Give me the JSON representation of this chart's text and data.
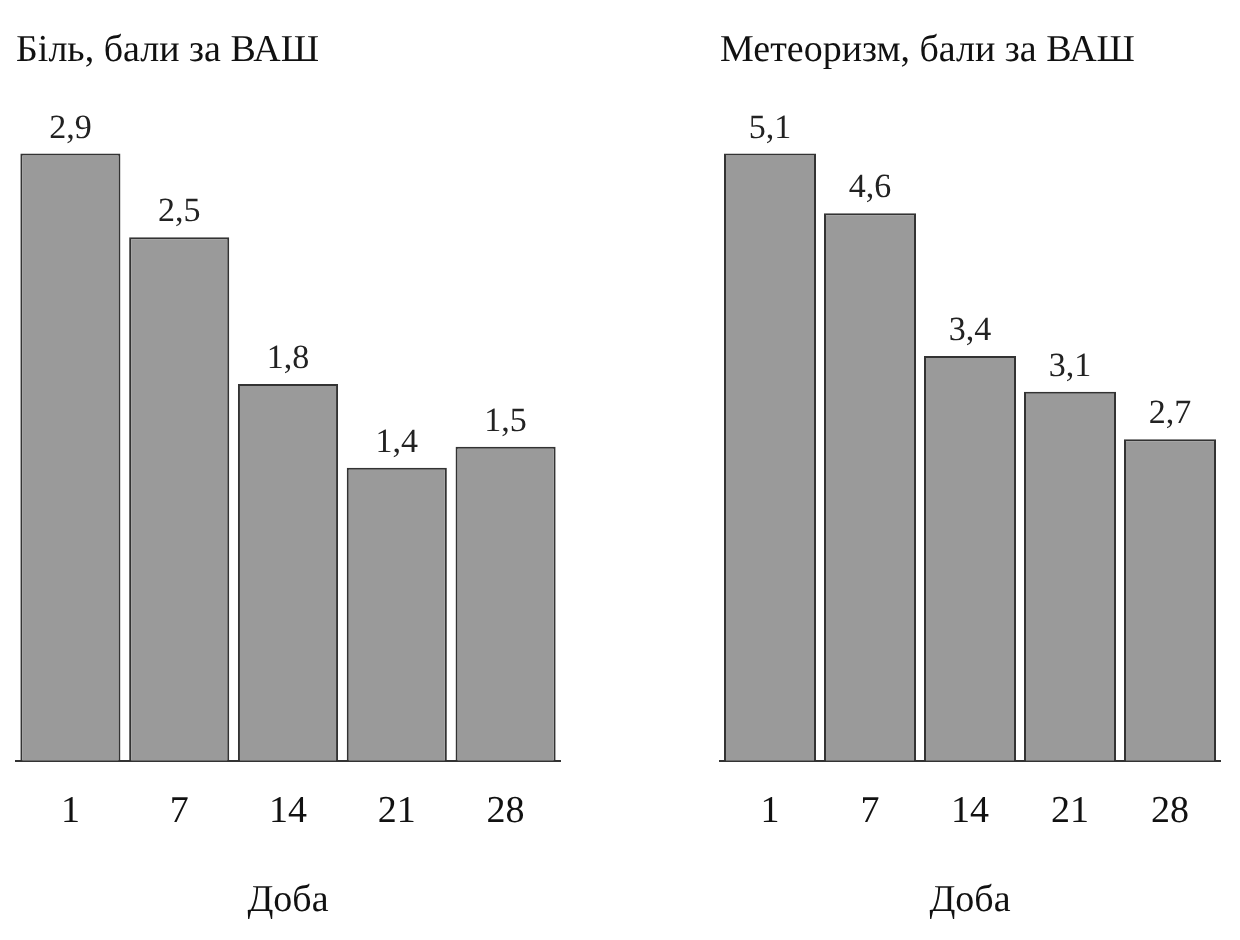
{
  "chart_data": [
    {
      "type": "bar",
      "title": "Біль, бали за ВАШ",
      "xlabel": "Доба",
      "categories": [
        "1",
        "7",
        "14",
        "21",
        "28"
      ],
      "values": [
        2.9,
        2.5,
        1.8,
        1.4,
        1.5
      ],
      "value_labels": [
        "2,9",
        "2,5",
        "1,8",
        "1,4",
        "1,5"
      ],
      "color": "#9a9a9a",
      "grid": false,
      "legend": false
    },
    {
      "type": "bar",
      "title": "Метеоризм, бали за ВАШ",
      "xlabel": "Доба",
      "categories": [
        "1",
        "7",
        "14",
        "21",
        "28"
      ],
      "values": [
        5.1,
        4.6,
        3.4,
        3.1,
        2.7
      ],
      "value_labels": [
        "5,1",
        "4,6",
        "3,4",
        "3,1",
        "2,7"
      ],
      "color": "#9a9a9a",
      "grid": false,
      "legend": false
    }
  ]
}
